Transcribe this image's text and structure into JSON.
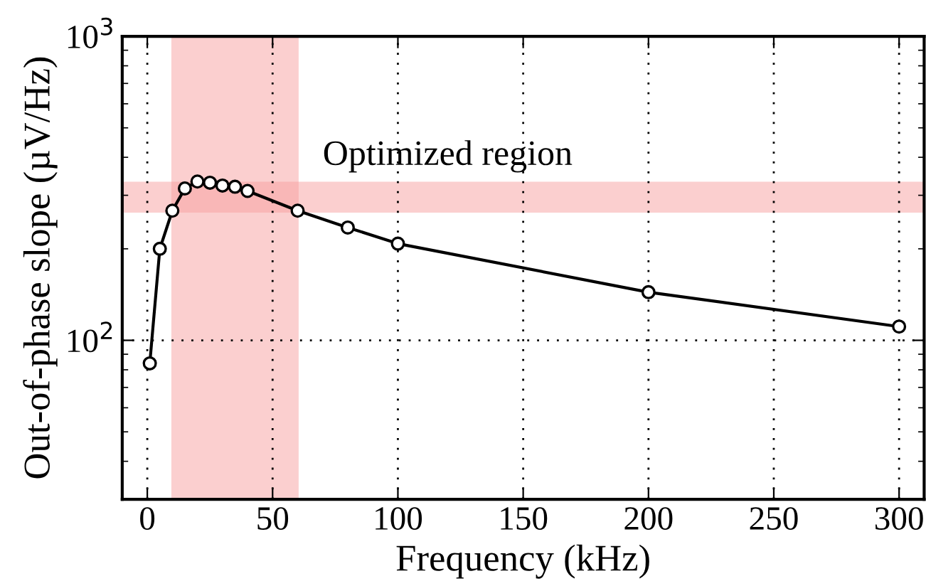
{
  "chart_data": {
    "type": "line",
    "xlabel": "Frequency (kHz)",
    "ylabel": "Out-of-phase slope (µV/Hz)",
    "x": [
      1,
      5,
      10,
      15,
      20,
      25,
      30,
      35,
      40,
      60,
      80,
      100,
      200,
      300
    ],
    "series": [
      {
        "color": "#000000",
        "values": [
          84,
          200,
          267,
          316,
          333,
          330,
          323,
          320,
          310,
          267,
          235,
          208,
          144,
          111
        ]
      }
    ],
    "marker": "circle",
    "log": "y",
    "grid": true,
    "xlim": [
      -10,
      310
    ],
    "xticks": [
      0,
      50,
      100,
      150,
      200,
      250,
      300
    ],
    "ylim": [
      30,
      1000
    ],
    "yticks": [
      {
        "value": 100,
        "label": "10$^{2}$"
      },
      {
        "value": 1000,
        "label": "10$^{3}$"
      }
    ],
    "bands": [
      {
        "axis": "x",
        "from": 10,
        "to": 60,
        "label": null,
        "color": "#f8a0a0"
      },
      {
        "axis": "y",
        "from": 265,
        "to": 330,
        "label": "Optimized region",
        "color": "#f8a0a0"
      }
    ]
  }
}
